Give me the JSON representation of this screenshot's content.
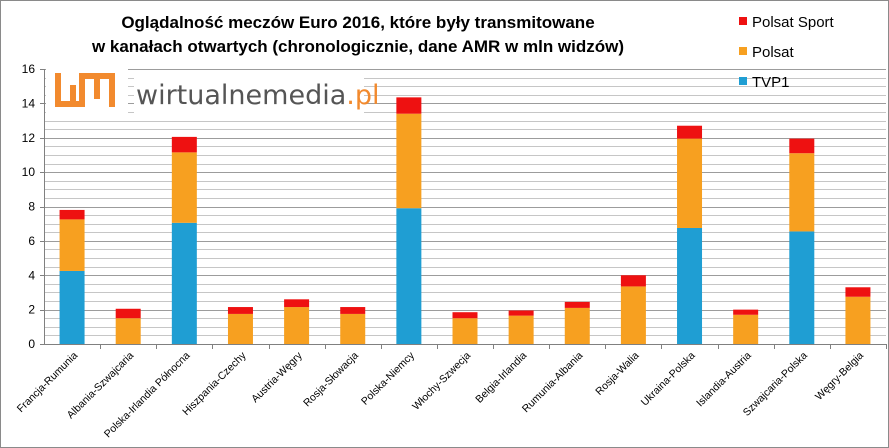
{
  "chart_data": {
    "type": "bar",
    "stacked": true,
    "title": [
      "Oglądalność meczów Euro 2016, które były transmitowane",
      "w kanałach otwartych (chronologicznie, dane AMR w mln widzów)"
    ],
    "xlabel": "",
    "ylabel": "",
    "ylim": [
      0,
      16
    ],
    "yticks": [
      "0",
      "2",
      "4",
      "6",
      "8",
      "10",
      "12",
      "14",
      "16"
    ],
    "grid": true,
    "legend_position": "top-right",
    "categories": [
      "Francja-Rumunia",
      "Albania-Szwajcaria",
      "Polska-Irlandia Północna",
      "Hiszpania-Czechy",
      "Austria-Węgry",
      "Rosja-Słowacja",
      "Polska-Niemcy",
      "Włochy-Szwecja",
      "Belgia-Irlandia",
      "Rumunia-Albania",
      "Rosja-Walia",
      "Ukraina-Polska",
      "Islandia-Austria",
      "Szwajcaria-Polska",
      "Węgry-Belgia"
    ],
    "series": [
      {
        "name": "TVP1",
        "color": "#1f9ed3",
        "values": [
          4.25,
          0,
          7.05,
          0,
          0,
          0,
          7.9,
          0,
          0,
          0,
          0,
          6.75,
          0,
          6.55,
          0
        ]
      },
      {
        "name": "Polsat",
        "color": "#f7a020",
        "values": [
          3.0,
          1.5,
          4.1,
          1.75,
          2.15,
          1.75,
          5.5,
          1.5,
          1.65,
          2.1,
          3.35,
          5.2,
          1.7,
          4.55,
          2.75
        ]
      },
      {
        "name": "Polsat Sport",
        "color": "#ee1111",
        "values": [
          0.55,
          0.55,
          0.9,
          0.4,
          0.45,
          0.4,
          0.95,
          0.35,
          0.3,
          0.35,
          0.65,
          0.75,
          0.3,
          0.85,
          0.55
        ]
      }
    ]
  },
  "watermark": {
    "brand": "wirtualnemedia",
    "tld": ".pl",
    "accent": "#f28a2e",
    "text_color": "#555555"
  }
}
